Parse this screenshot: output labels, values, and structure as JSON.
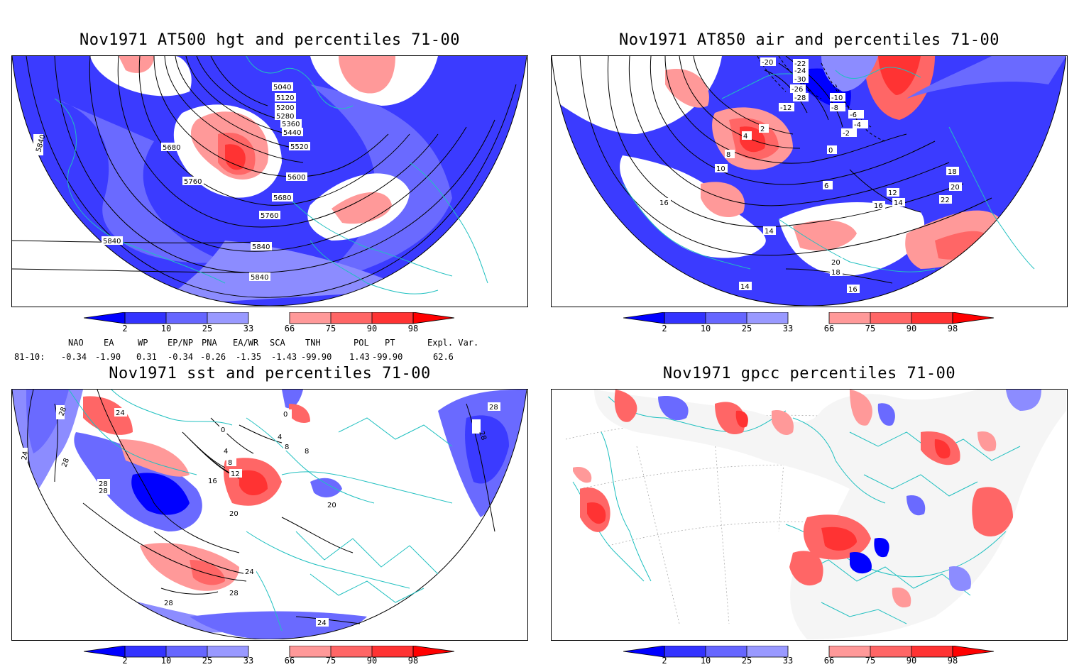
{
  "panels": [
    {
      "title": "Nov1971 AT500 hgt and percentiles 71-00",
      "labels": [
        "5040",
        "5120",
        "5200",
        "5280",
        "5360",
        "5440",
        "5520",
        "5600",
        "5680",
        "5760",
        "5840",
        "5680",
        "5760",
        "5840",
        "5840",
        "5840"
      ]
    },
    {
      "title": "Nov1971 AT850 air and percentiles 71-00",
      "labels": [
        "-20",
        "-22",
        "-24",
        "-26",
        "-30",
        "-28",
        "-12",
        "-10",
        "-8",
        "-6",
        "-4",
        "-2",
        "0",
        "2",
        "4",
        "6",
        "8",
        "10",
        "12",
        "14",
        "16",
        "18",
        "20",
        "22",
        "14",
        "16",
        "18",
        "20",
        "14",
        "16"
      ]
    },
    {
      "title": "Nov1971 sst and percentiles 71-00",
      "labels": [
        "24",
        "28",
        "28",
        "28",
        "28",
        "24",
        "0",
        "4",
        "8",
        "12",
        "16",
        "20",
        "24",
        "28",
        "28",
        "4",
        "8",
        "8",
        "20",
        "28",
        "28",
        "24",
        "0"
      ]
    },
    {
      "title": "Nov1971 gpcc percentiles 71-00",
      "labels": []
    }
  ],
  "colorbar": {
    "ticks": [
      "2",
      "10",
      "25",
      "33",
      "66",
      "75",
      "90",
      "98"
    ],
    "colors": [
      "#0000ff",
      "#3333ff",
      "#6666ff",
      "#9999ff",
      "#ffffff",
      "#ff9999",
      "#ff6666",
      "#ff3333",
      "#ff0000"
    ]
  },
  "indices": {
    "headers": [
      "NAO",
      "EA",
      "WP",
      "EP/NP",
      "PNA",
      "EA/WR",
      "SCA",
      "TNH",
      "POL",
      "PT",
      "Expl. Var."
    ],
    "row_label": "81-10:",
    "values": [
      "-0.34",
      "-1.90",
      "0.31",
      "-0.34",
      "-0.26",
      "-1.35",
      "-1.43",
      "-99.90",
      "1.43",
      "-99.90",
      "62.6"
    ]
  }
}
